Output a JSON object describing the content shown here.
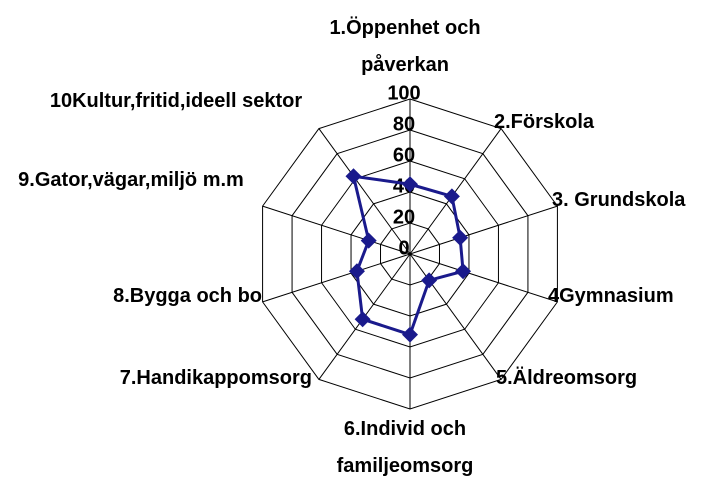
{
  "chart_data": {
    "type": "radar",
    "categories": [
      "1.Öppenhet och påverkan",
      "2.Förskola",
      "3. Grundskola",
      "4Gymnasium",
      "5.Äldreomsorg",
      "6.Individ och familjeomsorg",
      "7.Handikappomsorg",
      "8.Bygga och bo",
      "9.Gator,vägar,miljö m.m",
      "10Kultur,fritid,ideell sektor"
    ],
    "series": [
      {
        "color": "#1a1a8c",
        "values": [
          45,
          46,
          34,
          36,
          21,
          52,
          52,
          36,
          28,
          62
        ]
      }
    ],
    "ylim": [
      0,
      100
    ],
    "yticks": [
      0,
      20,
      40,
      60,
      80,
      100
    ],
    "grid": true
  }
}
